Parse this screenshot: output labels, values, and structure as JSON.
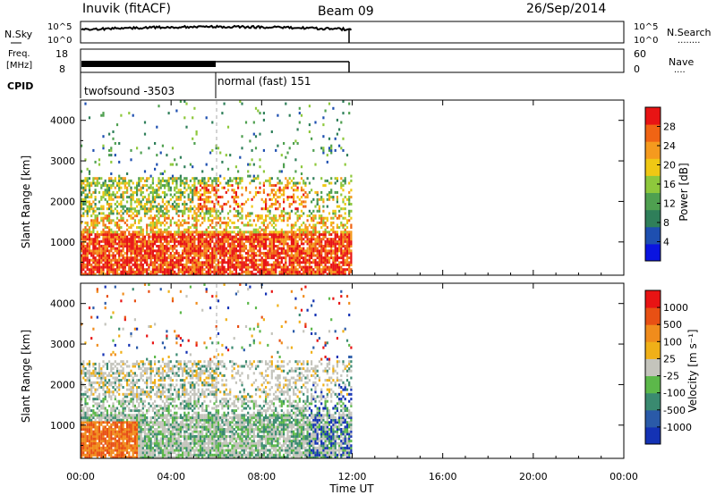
{
  "header": {
    "station": "Inuvik (fitACF)",
    "beam": "Beam 09",
    "date": "26/Sep/2014"
  },
  "nsky_panel": {
    "label": "N.Sky",
    "left_ticks": [
      "10^5",
      "10^0"
    ],
    "right_ticks": [
      "10^5",
      "10^0"
    ],
    "right_label": "N.Search",
    "right_dots": "........"
  },
  "freq_panel": {
    "label_line1": "Freq.",
    "label_line2": "[MHz]",
    "left_ticks": [
      "18",
      "8"
    ],
    "right_ticks": [
      "60",
      "0"
    ],
    "right_label": "Nave",
    "right_dots": "...."
  },
  "cpid_panel": {
    "label": "CPID",
    "modes": [
      "twofsound -3503",
      "normal (fast) 151"
    ]
  },
  "colors": {
    "power_scale": [
      "#0a14e0",
      "#1e4fb0",
      "#2f7f5a",
      "#4fa050",
      "#8ec83c",
      "#f0c814",
      "#f59a1e",
      "#f06414",
      "#e81414"
    ],
    "velocity_scale": [
      "#1432b4",
      "#2a5aa8",
      "#3a8a70",
      "#5cb84a",
      "#c4c4bc",
      "#f0b018",
      "#f08c1c",
      "#e85014",
      "#e81414"
    ]
  },
  "chart_data": [
    {
      "type": "heatmap",
      "name": "power",
      "ylabel": "Slant Range [km]",
      "y_ticks": [
        "1000",
        "2000",
        "3000",
        "4000"
      ],
      "ylim": [
        180,
        4500
      ],
      "x_ticks": [
        "00:00",
        "04:00",
        "08:00",
        "12:00",
        "16:00",
        "20:00",
        "00:00"
      ],
      "xlim_hours": [
        0,
        24
      ],
      "data_extent_hours": [
        0,
        12
      ],
      "colorbar": {
        "label": "Power [dB]",
        "ticks": [
          "28",
          "24",
          "20",
          "16",
          "12",
          "8",
          "4"
        ]
      }
    },
    {
      "type": "heatmap",
      "name": "velocity",
      "ylabel": "Slant Range [km]",
      "y_ticks": [
        "1000",
        "2000",
        "3000",
        "4000"
      ],
      "ylim": [
        180,
        4500
      ],
      "x_ticks": [
        "00:00",
        "04:00",
        "08:00",
        "12:00",
        "16:00",
        "20:00",
        "00:00"
      ],
      "xlim_hours": [
        0,
        24
      ],
      "data_extent_hours": [
        0,
        12
      ],
      "colorbar": {
        "label": "Velocity [m s⁻¹]",
        "ticks": [
          "1000",
          "500",
          "100",
          "25",
          "-25",
          "-100",
          "-500",
          "-1000"
        ]
      }
    }
  ],
  "xaxis": {
    "label": "Time UT"
  }
}
